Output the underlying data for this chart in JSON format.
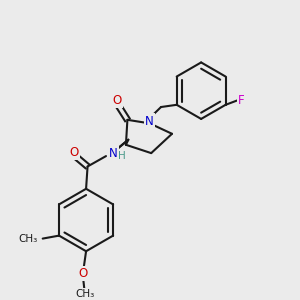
{
  "bg_color": "#ebebeb",
  "bond_color": "#1a1a1a",
  "bond_lw": 1.5,
  "atom_colors": {
    "O": "#cc0000",
    "N": "#0000cc",
    "F": "#cc00cc",
    "H": "#4a9a8a",
    "C": "#1a1a1a"
  },
  "font_size": 8.5,
  "font_size_small": 7.5
}
